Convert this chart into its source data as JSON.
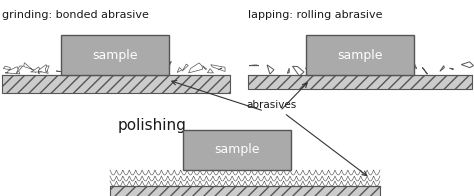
{
  "bg_color": "#ffffff",
  "text_color": "#1a1a1a",
  "box_color": "#aaaaaa",
  "box_edge": "#555555",
  "plate_fc": "#cccccc",
  "plate_ec": "#555555",
  "title1": "grinding: bonded abrasive",
  "title2": "lapping: rolling abrasive",
  "title3": "polishing",
  "sample_label": "sample",
  "abrasives_label": "abrasives",
  "fig_w": 4.74,
  "fig_h": 1.96
}
